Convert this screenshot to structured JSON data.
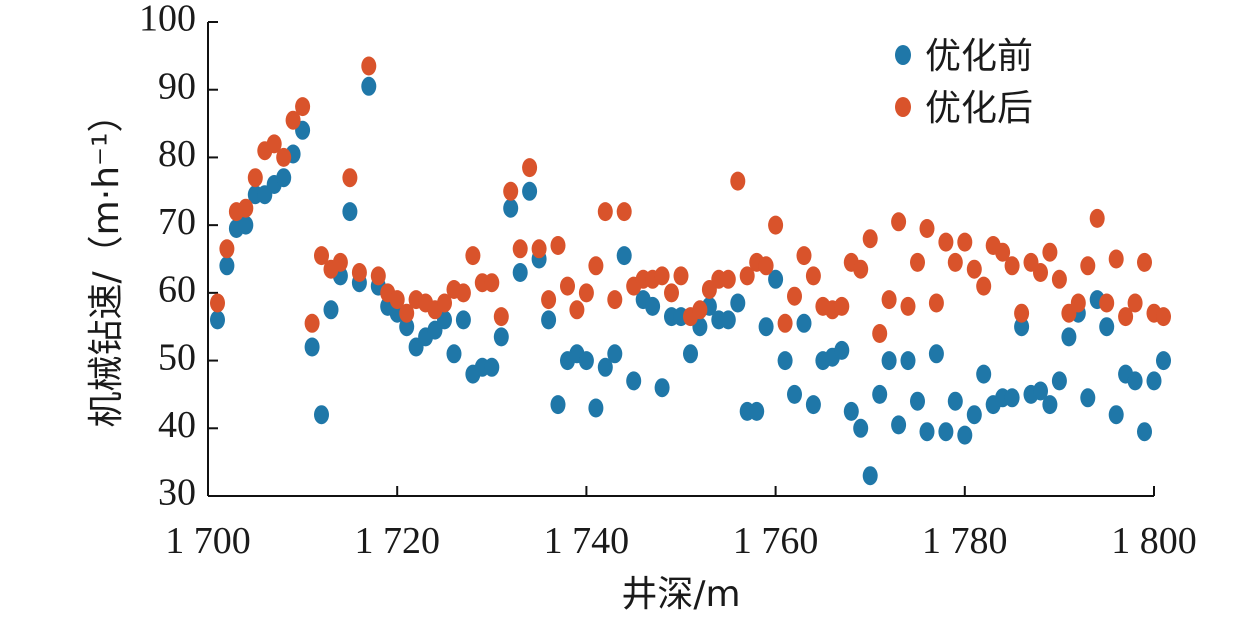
{
  "chart_data": {
    "type": "scatter",
    "title": "",
    "xlabel": "井深/m",
    "ylabel": "机械钻速/（m·h⁻¹）",
    "xlim": [
      1700,
      1800
    ],
    "ylim": [
      30,
      100
    ],
    "x_ticks": [
      1700,
      1720,
      1740,
      1760,
      1780,
      1800
    ],
    "x_tick_labels": [
      "1 700",
      "1 720",
      "1 740",
      "1 760",
      "1 780",
      "1 800"
    ],
    "y_ticks": [
      30,
      40,
      50,
      60,
      70,
      80,
      90,
      100
    ],
    "y_tick_labels": [
      "30",
      "40",
      "50",
      "60",
      "70",
      "80",
      "90",
      "100"
    ],
    "grid": false,
    "legend_position": "top-right",
    "series": [
      {
        "name": "优化前",
        "color": "#1f77a8",
        "points": [
          [
            1701,
            56
          ],
          [
            1702,
            64
          ],
          [
            1703,
            69.5
          ],
          [
            1704,
            70
          ],
          [
            1705,
            74.5
          ],
          [
            1706,
            74.5
          ],
          [
            1707,
            76
          ],
          [
            1708,
            77
          ],
          [
            1709,
            80.5
          ],
          [
            1710,
            84
          ],
          [
            1711,
            52
          ],
          [
            1712,
            42
          ],
          [
            1713,
            57.5
          ],
          [
            1714,
            62.5
          ],
          [
            1715,
            72
          ],
          [
            1716,
            61.5
          ],
          [
            1717,
            90.5
          ],
          [
            1718,
            61
          ],
          [
            1719,
            58
          ],
          [
            1720,
            57
          ],
          [
            1721,
            55
          ],
          [
            1722,
            52
          ],
          [
            1723,
            53.5
          ],
          [
            1724,
            54.5
          ],
          [
            1725,
            56
          ],
          [
            1726,
            51
          ],
          [
            1727,
            56
          ],
          [
            1728,
            48
          ],
          [
            1729,
            49
          ],
          [
            1730,
            49
          ],
          [
            1731,
            53.5
          ],
          [
            1732,
            72.5
          ],
          [
            1733,
            63
          ],
          [
            1734,
            75
          ],
          [
            1735,
            65
          ],
          [
            1736,
            56
          ],
          [
            1737,
            43.5
          ],
          [
            1738,
            50
          ],
          [
            1739,
            51
          ],
          [
            1740,
            50
          ],
          [
            1741,
            43
          ],
          [
            1742,
            49
          ],
          [
            1743,
            51
          ],
          [
            1744,
            65.5
          ],
          [
            1745,
            47
          ],
          [
            1746,
            59
          ],
          [
            1747,
            58
          ],
          [
            1748,
            46
          ],
          [
            1749,
            56.5
          ],
          [
            1750,
            56.5
          ],
          [
            1751,
            51
          ],
          [
            1752,
            55
          ],
          [
            1753,
            58
          ],
          [
            1754,
            56
          ],
          [
            1755,
            56
          ],
          [
            1756,
            58.5
          ],
          [
            1757,
            42.5
          ],
          [
            1758,
            42.5
          ],
          [
            1759,
            55
          ],
          [
            1760,
            62
          ],
          [
            1761,
            50
          ],
          [
            1762,
            45
          ],
          [
            1763,
            55.5
          ],
          [
            1764,
            43.5
          ],
          [
            1765,
            50
          ],
          [
            1766,
            50.5
          ],
          [
            1767,
            51.5
          ],
          [
            1768,
            42.5
          ],
          [
            1769,
            40
          ],
          [
            1770,
            33
          ],
          [
            1771,
            45
          ],
          [
            1772,
            50
          ],
          [
            1773,
            40.5
          ],
          [
            1774,
            50
          ],
          [
            1775,
            44
          ],
          [
            1776,
            39.5
          ],
          [
            1777,
            51
          ],
          [
            1778,
            39.5
          ],
          [
            1779,
            44
          ],
          [
            1780,
            39
          ],
          [
            1781,
            42
          ],
          [
            1782,
            48
          ],
          [
            1783,
            43.5
          ],
          [
            1784,
            44.5
          ],
          [
            1785,
            44.5
          ],
          [
            1786,
            55
          ],
          [
            1787,
            45
          ],
          [
            1788,
            45.5
          ],
          [
            1789,
            43.5
          ],
          [
            1790,
            47
          ],
          [
            1791,
            53.5
          ],
          [
            1792,
            57
          ],
          [
            1793,
            44.5
          ],
          [
            1794,
            59
          ],
          [
            1795,
            55
          ],
          [
            1796,
            42
          ],
          [
            1797,
            48
          ],
          [
            1798,
            47
          ],
          [
            1799,
            39.5
          ],
          [
            1800,
            47
          ],
          [
            1801,
            50
          ]
        ]
      },
      {
        "name": "优化后",
        "color": "#d9532b",
        "points": [
          [
            1701,
            58.5
          ],
          [
            1702,
            66.5
          ],
          [
            1703,
            72
          ],
          [
            1704,
            72.5
          ],
          [
            1705,
            77
          ],
          [
            1706,
            81
          ],
          [
            1707,
            82
          ],
          [
            1708,
            80
          ],
          [
            1709,
            85.5
          ],
          [
            1710,
            87.5
          ],
          [
            1711,
            55.5
          ],
          [
            1712,
            65.5
          ],
          [
            1713,
            63.5
          ],
          [
            1714,
            64.5
          ],
          [
            1715,
            77
          ],
          [
            1716,
            63
          ],
          [
            1717,
            93.5
          ],
          [
            1718,
            62.5
          ],
          [
            1719,
            60
          ],
          [
            1720,
            59
          ],
          [
            1721,
            57
          ],
          [
            1722,
            59
          ],
          [
            1723,
            58.5
          ],
          [
            1724,
            57.5
          ],
          [
            1725,
            58.5
          ],
          [
            1726,
            60.5
          ],
          [
            1727,
            60
          ],
          [
            1728,
            65.5
          ],
          [
            1729,
            61.5
          ],
          [
            1730,
            61.5
          ],
          [
            1731,
            56.5
          ],
          [
            1732,
            75
          ],
          [
            1733,
            66.5
          ],
          [
            1734,
            78.5
          ],
          [
            1735,
            66.5
          ],
          [
            1736,
            59
          ],
          [
            1737,
            67
          ],
          [
            1738,
            61
          ],
          [
            1739,
            57.5
          ],
          [
            1740,
            60
          ],
          [
            1741,
            64
          ],
          [
            1742,
            72
          ],
          [
            1743,
            59
          ],
          [
            1744,
            72
          ],
          [
            1745,
            61
          ],
          [
            1746,
            62
          ],
          [
            1747,
            62
          ],
          [
            1748,
            62.5
          ],
          [
            1749,
            60
          ],
          [
            1750,
            62.5
          ],
          [
            1751,
            56.5
          ],
          [
            1752,
            57.5
          ],
          [
            1753,
            60.5
          ],
          [
            1754,
            62
          ],
          [
            1755,
            62
          ],
          [
            1756,
            76.5
          ],
          [
            1757,
            62.5
          ],
          [
            1758,
            64.5
          ],
          [
            1759,
            64
          ],
          [
            1760,
            70
          ],
          [
            1761,
            55.5
          ],
          [
            1762,
            59.5
          ],
          [
            1763,
            65.5
          ],
          [
            1764,
            62.5
          ],
          [
            1765,
            58
          ],
          [
            1766,
            57.5
          ],
          [
            1767,
            58
          ],
          [
            1768,
            64.5
          ],
          [
            1769,
            63.5
          ],
          [
            1770,
            68
          ],
          [
            1771,
            54
          ],
          [
            1772,
            59
          ],
          [
            1773,
            70.5
          ],
          [
            1774,
            58
          ],
          [
            1775,
            64.5
          ],
          [
            1776,
            69.5
          ],
          [
            1777,
            58.5
          ],
          [
            1778,
            67.5
          ],
          [
            1779,
            64.5
          ],
          [
            1780,
            67.5
          ],
          [
            1781,
            63.5
          ],
          [
            1782,
            61
          ],
          [
            1783,
            67
          ],
          [
            1784,
            66
          ],
          [
            1785,
            64
          ],
          [
            1786,
            57
          ],
          [
            1787,
            64.5
          ],
          [
            1788,
            63
          ],
          [
            1789,
            66
          ],
          [
            1790,
            62
          ],
          [
            1791,
            57
          ],
          [
            1792,
            58.5
          ],
          [
            1793,
            64
          ],
          [
            1794,
            71
          ],
          [
            1795,
            58.5
          ],
          [
            1796,
            65
          ],
          [
            1797,
            56.5
          ],
          [
            1798,
            58.5
          ],
          [
            1799,
            64.5
          ],
          [
            1800,
            57
          ],
          [
            1801,
            56.5
          ]
        ]
      }
    ]
  }
}
